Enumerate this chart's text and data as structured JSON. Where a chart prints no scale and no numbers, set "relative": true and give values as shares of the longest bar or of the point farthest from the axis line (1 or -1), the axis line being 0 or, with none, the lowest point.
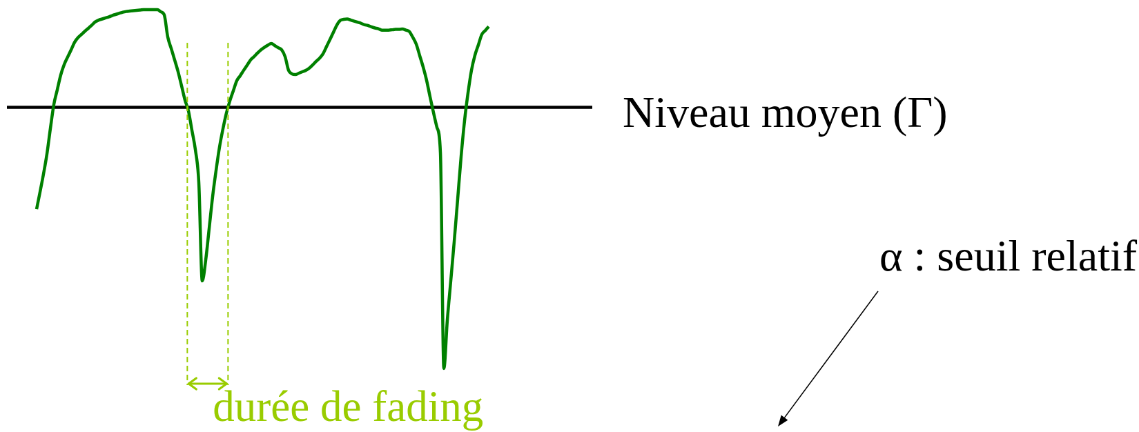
{
  "chart_data": {
    "type": "line",
    "relative": true,
    "marker": "none",
    "categories": [
      null,
      null,
      null,
      null,
      null,
      null,
      null,
      null,
      null,
      null,
      null,
      null,
      null,
      null,
      null,
      null,
      null,
      null,
      null,
      null,
      null,
      null,
      null,
      null,
      null,
      null,
      null,
      null,
      null,
      null,
      null,
      null,
      null,
      null,
      null,
      null,
      null,
      null,
      null,
      null,
      null,
      null,
      null,
      null,
      null,
      null,
      null,
      null,
      null,
      null,
      null,
      null,
      null,
      null,
      null,
      null,
      null,
      null,
      null,
      null,
      null,
      null,
      null,
      null,
      null,
      null,
      null,
      null,
      null,
      null,
      null,
      null,
      null,
      null,
      null,
      null,
      null,
      null,
      null,
      null,
      null,
      null,
      null,
      null,
      null,
      null,
      null,
      null,
      null,
      null,
      null,
      null,
      null,
      null,
      null,
      null,
      null,
      null,
      null,
      null,
      null,
      null,
      null,
      null,
      null,
      null,
      null,
      null,
      null,
      null,
      null,
      null,
      null,
      null,
      null,
      null,
      null,
      null,
      null,
      null,
      null,
      null,
      null,
      null,
      null,
      null,
      null,
      null,
      null,
      null,
      null,
      null,
      null,
      null,
      null,
      null,
      null,
      null,
      null,
      null,
      null,
      null,
      null,
      null,
      null,
      null,
      null,
      null,
      null,
      null,
      null,
      null,
      null,
      null,
      null,
      null,
      null,
      null,
      null,
      null,
      null,
      null,
      null,
      null,
      null,
      null,
      null,
      null,
      null,
      null,
      null,
      null
    ],
    "series": [
      {
        "color": "#008000",
        "values": [
          null,
          null,
          null,
          null,
          null,
          null,
          null,
          null,
          null,
          null,
          0.444,
          0.492,
          0.542,
          0.598,
          0.669,
          0.736,
          0.777,
          0.818,
          0.847,
          0.868,
          0.888,
          0.909,
          0.922,
          0.931,
          0.94,
          0.948,
          0.957,
          0.966,
          0.971,
          0.974,
          0.977,
          0.98,
          0.984,
          0.987,
          0.99,
          0.993,
          0.995,
          0.996,
          0.997,
          0.998,
          0.999,
          1,
          1,
          1,
          1,
          1,
          0.994,
          0.985,
          0.924,
          0.892,
          0.86,
          0.827,
          0.788,
          0.748,
          0.718,
          0.664,
          0.61,
          0.519,
          0.244,
          0.302,
          0.39,
          0.479,
          0.552,
          0.617,
          0.668,
          0.712,
          0.746,
          0.774,
          0.802,
          0.816,
          0.831,
          0.845,
          0.86,
          0.869,
          0.879,
          0.888,
          0.895,
          0.901,
          0.906,
          0.9,
          0.894,
          0.888,
          0.869,
          0.831,
          0.821,
          0.819,
          0.823,
          0.827,
          0.831,
          0.837,
          0.846,
          0.856,
          0.865,
          0.877,
          0.897,
          0.917,
          0.937,
          0.957,
          0.97,
          0.973,
          0.974,
          0.971,
          0.968,
          0.965,
          0.962,
          0.958,
          0.956,
          0.952,
          0.949,
          0.947,
          0.943,
          0.943,
          0.943,
          0.944,
          0.945,
          0.945,
          0.946,
          0.943,
          0.939,
          0.923,
          0.904,
          0.872,
          0.84,
          0.803,
          0.757,
          0.713,
          0.672,
          0.602,
          0,
          0.135,
          0.244,
          0.354,
          0.472,
          0.591,
          0.691,
          0.768,
          0.831,
          0.873,
          0.902,
          0.931,
          0.942,
          0.953,
          null,
          null,
          null,
          null,
          null,
          null,
          null,
          null,
          null,
          null,
          null,
          null,
          null,
          null,
          null,
          null,
          null,
          null,
          null,
          null,
          null,
          null,
          null,
          null,
          null,
          null,
          null,
          null,
          null,
          null
        ]
      }
    ],
    "ref_lines": [
      {
        "axis": "y",
        "value": 0.728,
        "label": "Niveau moyen (Γ)",
        "color": "#000000"
      }
    ],
    "annotations": [
      "durée de fading",
      "α : seuil relatif"
    ]
  }
}
